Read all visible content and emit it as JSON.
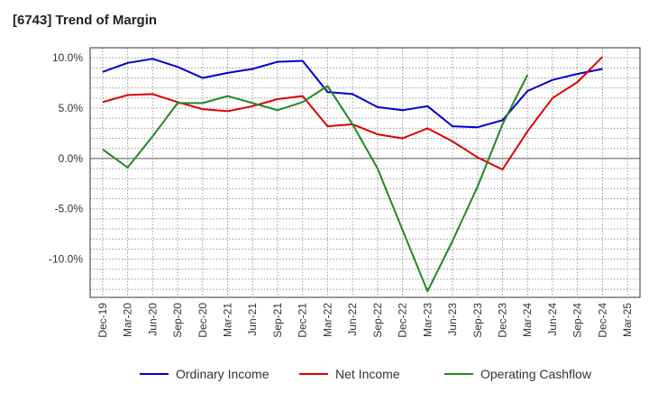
{
  "chart_data": {
    "type": "line",
    "title": "[6743]  Trend of Margin",
    "xlabel": "",
    "ylabel": "",
    "x": [
      "Dec-19",
      "Mar-20",
      "Jun-20",
      "Sep-20",
      "Dec-20",
      "Mar-21",
      "Jun-21",
      "Sep-21",
      "Dec-21",
      "Mar-22",
      "Jun-22",
      "Sep-22",
      "Dec-22",
      "Mar-23",
      "Jun-23",
      "Sep-23",
      "Dec-23",
      "Mar-24",
      "Jun-24",
      "Sep-24",
      "Dec-24",
      "Mar-25"
    ],
    "ylim": [
      -13.8,
      11.0
    ],
    "yticks": [
      10.0,
      5.0,
      0.0,
      -5.0,
      -10.0
    ],
    "ytick_labels": [
      "10.0%",
      "5.0%",
      "0.0%",
      "-5.0%",
      "-10.0%"
    ],
    "grid": true,
    "legend_position": "bottom",
    "series": [
      {
        "name": "Ordinary Income",
        "color": "#0000cc",
        "values": [
          8.6,
          9.5,
          9.9,
          9.1,
          8.0,
          8.5,
          8.9,
          9.6,
          9.7,
          6.6,
          6.4,
          5.1,
          4.8,
          5.2,
          3.2,
          3.1,
          3.8,
          6.7,
          7.8,
          8.4,
          8.9,
          null
        ]
      },
      {
        "name": "Net Income",
        "color": "#dd0000",
        "values": [
          5.6,
          6.3,
          6.4,
          5.6,
          4.9,
          4.7,
          5.2,
          5.9,
          6.2,
          3.2,
          3.4,
          2.4,
          2.0,
          3.0,
          1.7,
          0.1,
          -1.1,
          2.7,
          6.0,
          7.6,
          10.1,
          null
        ]
      },
      {
        "name": "Operating Cashflow",
        "color": "#228822",
        "values": [
          0.9,
          -0.9,
          2.2,
          5.5,
          5.5,
          6.2,
          5.5,
          4.8,
          5.6,
          7.2,
          3.4,
          -1.0,
          -7.1,
          -13.2,
          -8.2,
          -2.8,
          3.4,
          8.3,
          null,
          null,
          null,
          null
        ]
      }
    ]
  }
}
